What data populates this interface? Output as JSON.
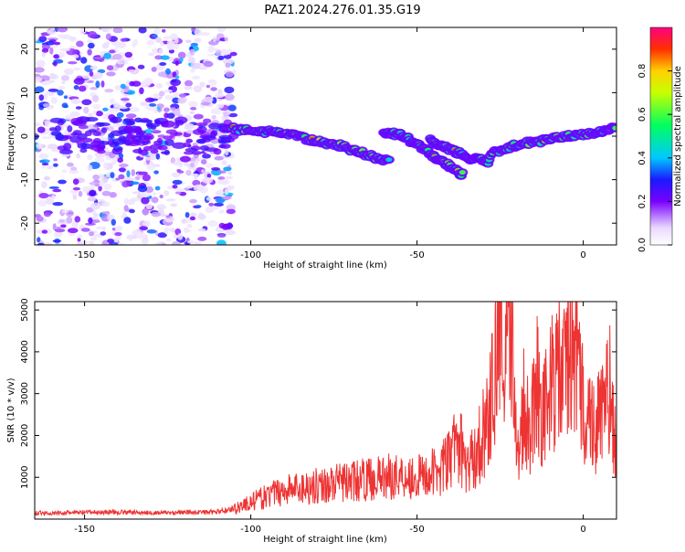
{
  "title": "PAZ1.2024.276.01.35.G19",
  "chart_data": [
    {
      "type": "heatmap",
      "xlabel": "Height of straight line (km)",
      "ylabel": "Frequency (Hz)",
      "xlim": [
        -165,
        10
      ],
      "ylim": [
        -25,
        25
      ],
      "xticks": [
        -150,
        -100,
        -50,
        0
      ],
      "yticks": [
        -20,
        -10,
        0,
        10,
        20
      ],
      "colorbar": {
        "label": "Normalized spectral amplitude",
        "range": [
          0,
          1
        ],
        "ticks": [
          0,
          0.2,
          0.4,
          0.6,
          0.8
        ]
      },
      "ridge": {
        "segments": [
          {
            "x": [
              -108,
              -98,
              -90,
              -82,
              -74,
              -66,
              -58
            ],
            "y": [
              2,
              1,
              1,
              -1,
              -2,
              -4,
              -6
            ]
          },
          {
            "x": [
              -60,
              -54,
              -48,
              -42,
              -36
            ],
            "y": [
              1,
              0,
              -3,
              -6,
              -9
            ]
          },
          {
            "x": [
              -46,
              -40,
              -34,
              -28
            ],
            "y": [
              -1,
              -3,
              -5,
              -6
            ]
          },
          {
            "x": [
              -28,
              -20,
              -12,
              -4,
              4,
              10
            ],
            "y": [
              -4,
              -2,
              -1,
              0,
              1,
              2
            ]
          }
        ],
        "peak_amplitude": 1.0
      },
      "noise": {
        "x_range": [
          -165,
          -105
        ],
        "amplitude": 0.35
      }
    },
    {
      "type": "line",
      "xlabel": "Height of straight line (km)",
      "ylabel": "SNR (10 * v/v)",
      "xlim": [
        -165,
        10
      ],
      "ylim": [
        0,
        5200
      ],
      "xticks": [
        -150,
        -100,
        -50,
        0
      ],
      "yticks": [
        1000,
        2000,
        3000,
        4000,
        5000
      ],
      "series": [
        {
          "color": "#ee3333",
          "x": [
            -165,
            -160,
            -150,
            -140,
            -130,
            -120,
            -110,
            -105,
            -100,
            -95,
            -90,
            -85,
            -80,
            -75,
            -70,
            -65,
            -60,
            -55,
            -50,
            -45,
            -40,
            -38,
            -35,
            -32,
            -30,
            -28,
            -26,
            -25,
            -24,
            -23,
            -22,
            -21,
            -20,
            -18,
            -16,
            -14,
            -12,
            -10,
            -8,
            -6,
            -4,
            -2,
            0,
            2,
            4,
            6,
            8,
            10
          ],
          "y": [
            150,
            140,
            160,
            170,
            150,
            160,
            170,
            250,
            400,
            550,
            700,
            750,
            800,
            850,
            900,
            950,
            1000,
            1050,
            1000,
            1100,
            1400,
            2000,
            1200,
            1600,
            2100,
            2600,
            4000,
            5100,
            3000,
            4200,
            3500,
            4800,
            1200,
            2800,
            2200,
            3400,
            2500,
            3000,
            3600,
            3300,
            4300,
            3800,
            2700,
            2400,
            2200,
            2600,
            3000,
            1700
          ]
        }
      ]
    }
  ]
}
